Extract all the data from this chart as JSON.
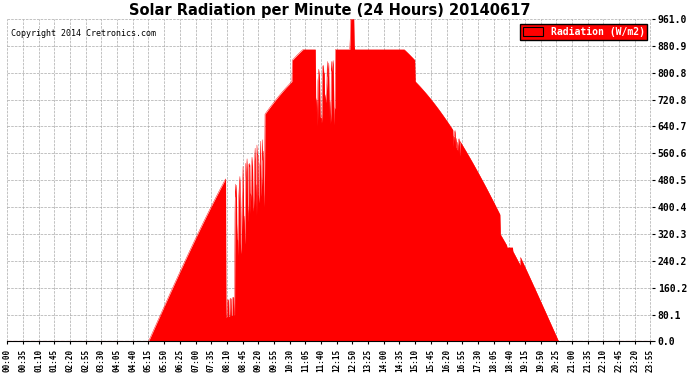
{
  "title": "Solar Radiation per Minute (24 Hours) 20140617",
  "copyright_text": "Copyright 2014 Cretronics.com",
  "legend_label": "Radiation (W/m2)",
  "yticks": [
    0.0,
    80.1,
    160.2,
    240.2,
    320.3,
    400.4,
    480.5,
    560.6,
    640.7,
    720.8,
    800.8,
    880.9,
    961.0
  ],
  "ymax": 961.0,
  "fill_color": "#FF0000",
  "line_color": "#FF0000",
  "background_color": "#FFFFFF",
  "grid_color": "#AAAAAA",
  "title_color": "#000000",
  "legend_bg": "#FF0000",
  "legend_text_color": "#FFFFFF",
  "hline_color": "#FF0000",
  "hline_y": 0.0,
  "tick_interval_min": 35
}
